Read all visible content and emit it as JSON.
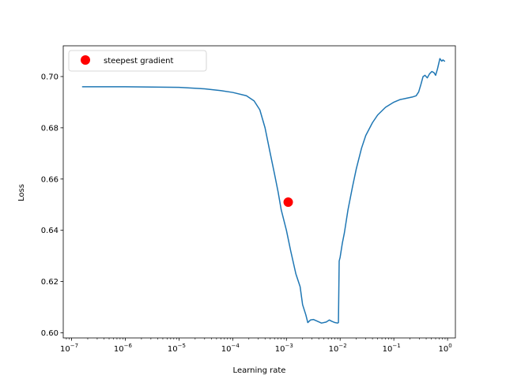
{
  "chart_data": {
    "type": "line",
    "xlabel": "Learning rate",
    "ylabel": "Loss",
    "xscale": "log",
    "xlim": [
      7e-08,
      1.4
    ],
    "ylim": [
      0.598,
      0.712
    ],
    "grid": false,
    "legend_placement": "upper left",
    "x_ticks": [
      {
        "value": 1e-07,
        "base": "10",
        "exp": "−7"
      },
      {
        "value": 1e-06,
        "base": "10",
        "exp": "−6"
      },
      {
        "value": 1e-05,
        "base": "10",
        "exp": "−5"
      },
      {
        "value": 0.0001,
        "base": "10",
        "exp": "−4"
      },
      {
        "value": 0.001,
        "base": "10",
        "exp": "−3"
      },
      {
        "value": 0.01,
        "base": "10",
        "exp": "−2"
      },
      {
        "value": 0.1,
        "base": "10",
        "exp": "−1"
      },
      {
        "value": 1,
        "base": "10",
        "exp": "0"
      }
    ],
    "y_ticks": [
      {
        "value": 0.6,
        "label": "0.60"
      },
      {
        "value": 0.62,
        "label": "0.62"
      },
      {
        "value": 0.64,
        "label": "0.64"
      },
      {
        "value": 0.66,
        "label": "0.66"
      },
      {
        "value": 0.68,
        "label": "0.68"
      },
      {
        "value": 0.7,
        "label": "0.70"
      }
    ],
    "series": [
      {
        "color": "#1f77b4",
        "points": [
          [
            1.6e-07,
            0.696
          ],
          [
            1e-06,
            0.696
          ],
          [
            1e-05,
            0.6958
          ],
          [
            3e-05,
            0.6952
          ],
          [
            6e-05,
            0.6945
          ],
          [
            0.0001,
            0.6938
          ],
          [
            0.00018,
            0.6925
          ],
          [
            0.00025,
            0.6905
          ],
          [
            0.00032,
            0.687
          ],
          [
            0.0004,
            0.68
          ],
          [
            0.0005,
            0.67
          ],
          [
            0.0006,
            0.662
          ],
          [
            0.0007,
            0.655
          ],
          [
            0.0008,
            0.648
          ],
          [
            0.001,
            0.64
          ],
          [
            0.0012,
            0.632
          ],
          [
            0.0015,
            0.623
          ],
          [
            0.0018,
            0.618
          ],
          [
            0.002,
            0.611
          ],
          [
            0.0023,
            0.607
          ],
          [
            0.0025,
            0.604
          ],
          [
            0.0028,
            0.605
          ],
          [
            0.0032,
            0.6052
          ],
          [
            0.0038,
            0.6045
          ],
          [
            0.0045,
            0.6038
          ],
          [
            0.0055,
            0.6042
          ],
          [
            0.0063,
            0.605
          ],
          [
            0.007,
            0.6045
          ],
          [
            0.008,
            0.604
          ],
          [
            0.009,
            0.6038
          ],
          [
            0.0093,
            0.604
          ],
          [
            0.0096,
            0.628
          ],
          [
            0.01,
            0.6295
          ],
          [
            0.011,
            0.635
          ],
          [
            0.012,
            0.639
          ],
          [
            0.014,
            0.648
          ],
          [
            0.017,
            0.657
          ],
          [
            0.02,
            0.664
          ],
          [
            0.025,
            0.672
          ],
          [
            0.03,
            0.677
          ],
          [
            0.04,
            0.682
          ],
          [
            0.05,
            0.685
          ],
          [
            0.07,
            0.688
          ],
          [
            0.1,
            0.69
          ],
          [
            0.13,
            0.691
          ],
          [
            0.17,
            0.6915
          ],
          [
            0.22,
            0.692
          ],
          [
            0.26,
            0.6925
          ],
          [
            0.29,
            0.694
          ],
          [
            0.32,
            0.697
          ],
          [
            0.35,
            0.7
          ],
          [
            0.38,
            0.7005
          ],
          [
            0.42,
            0.6995
          ],
          [
            0.46,
            0.701
          ],
          [
            0.51,
            0.702
          ],
          [
            0.56,
            0.7015
          ],
          [
            0.6,
            0.7005
          ],
          [
            0.65,
            0.703
          ],
          [
            0.72,
            0.707
          ],
          [
            0.78,
            0.706
          ],
          [
            0.82,
            0.7065
          ],
          [
            0.88,
            0.706
          ]
        ]
      }
    ],
    "marker": {
      "label": "steepest gradient",
      "x": 0.00108,
      "y": 0.651,
      "color": "#ff0000"
    }
  }
}
